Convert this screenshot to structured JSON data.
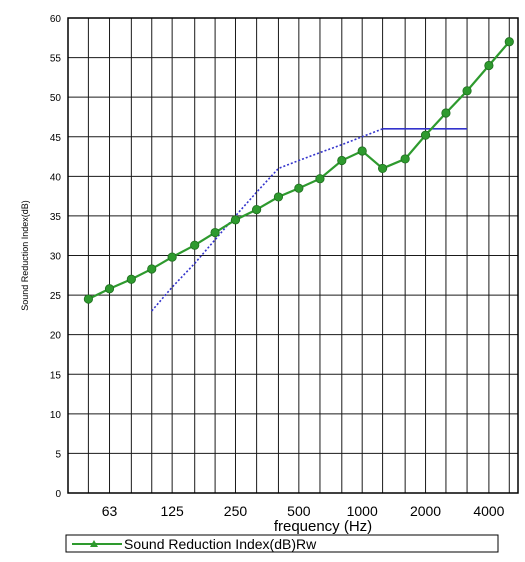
{
  "chart_data": {
    "type": "line",
    "title": "",
    "xlabel": "frequency (Hz)",
    "ylabel": "Sound Reduction Index(dB)",
    "ylim": [
      0,
      60
    ],
    "yticks": [
      0,
      5,
      10,
      15,
      20,
      25,
      30,
      35,
      40,
      45,
      50,
      55,
      60
    ],
    "x_scale": "log",
    "xtick_labels": [
      "63",
      "125",
      "250",
      "500",
      "1000",
      "2000",
      "4000"
    ],
    "grid": true,
    "legend_position": "bottom",
    "x": [
      50,
      63,
      80,
      100,
      125,
      160,
      200,
      250,
      315,
      400,
      500,
      630,
      800,
      1000,
      1250,
      1600,
      2000,
      2500,
      3150,
      4000,
      5000
    ],
    "series": [
      {
        "name": "Sound Reduction Index(dB)",
        "style": "solid-with-markers",
        "color": "#2e9a2e",
        "values": [
          24.5,
          25.8,
          27.0,
          28.3,
          29.8,
          31.3,
          32.9,
          34.5,
          35.8,
          37.4,
          38.5,
          39.7,
          42.0,
          43.2,
          41.0,
          42.2,
          45.2,
          48.0,
          50.8,
          54.0,
          57.0
        ]
      },
      {
        "name": "",
        "style": "dotted",
        "color": "#3333cc",
        "x": [
          100,
          125,
          160,
          200,
          250,
          315,
          400,
          500,
          630,
          800,
          1000,
          1250
        ],
        "values": [
          23,
          26,
          29,
          32,
          35,
          38,
          41,
          42,
          43,
          44,
          45,
          46
        ]
      },
      {
        "name": "",
        "style": "solid",
        "color": "#3333cc",
        "x": [
          1250,
          1600,
          2000,
          2500,
          3150
        ],
        "values": [
          46,
          46,
          46,
          46,
          46
        ]
      }
    ],
    "legend": {
      "label": "Sound Reduction Index(dB)",
      "overlay_text": "Rw"
    }
  }
}
